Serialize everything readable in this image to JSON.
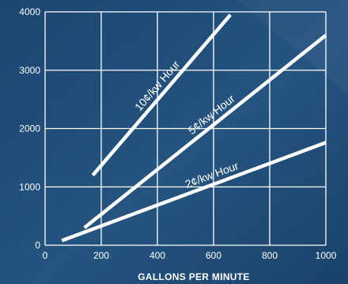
{
  "chart_data": {
    "type": "line",
    "xlabel": "GALLONS PER MINUTE",
    "ylabel": "",
    "xlim": [
      0,
      1000
    ],
    "ylim": [
      0,
      4000
    ],
    "x_ticks": [
      "0",
      "200",
      "400",
      "600",
      "800",
      "1000"
    ],
    "y_ticks": [
      "0",
      "1000",
      "2000",
      "3000",
      "4000"
    ],
    "grid": true,
    "series": [
      {
        "name": "10¢/kw Hour",
        "x": [
          170,
          660
        ],
        "y": [
          1200,
          3950
        ]
      },
      {
        "name": "5¢/kw Hour",
        "x": [
          140,
          1000
        ],
        "y": [
          300,
          3600
        ]
      },
      {
        "name": "2¢/kw Hour",
        "x": [
          60,
          1000
        ],
        "y": [
          80,
          1760
        ]
      }
    ]
  }
}
